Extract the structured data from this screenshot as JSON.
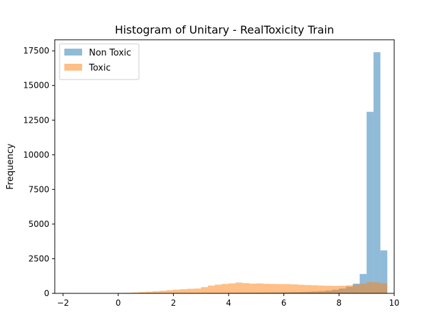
{
  "chart_data": {
    "type": "bar",
    "title": "Histogram of Unitary - RealToxicity Train",
    "xlabel": "",
    "ylabel": "Frequency",
    "xlim": [
      -2.3,
      10.0
    ],
    "ylim": [
      0,
      18300
    ],
    "xticks": [
      -2,
      0,
      2,
      4,
      6,
      8,
      10
    ],
    "yticks": [
      0,
      2500,
      5000,
      7500,
      10000,
      12500,
      15000,
      17500
    ],
    "grid": false,
    "legend_position": "top-left",
    "bin_width": 0.25,
    "series": [
      {
        "name": "Non Toxic",
        "color": "#1f77b4",
        "opacity": 0.5,
        "bins": [
          [
            3.0,
            20
          ],
          [
            3.25,
            25
          ],
          [
            3.5,
            30
          ],
          [
            3.75,
            30
          ],
          [
            4.0,
            35
          ],
          [
            4.25,
            40
          ],
          [
            4.5,
            40
          ],
          [
            4.75,
            45
          ],
          [
            5.0,
            50
          ],
          [
            5.25,
            55
          ],
          [
            5.5,
            60
          ],
          [
            5.75,
            65
          ],
          [
            6.0,
            75
          ],
          [
            6.25,
            85
          ],
          [
            6.5,
            95
          ],
          [
            6.75,
            110
          ],
          [
            7.0,
            130
          ],
          [
            7.25,
            160
          ],
          [
            7.5,
            200
          ],
          [
            7.75,
            260
          ],
          [
            8.0,
            350
          ],
          [
            8.25,
            480
          ],
          [
            8.5,
            700
          ],
          [
            8.75,
            1400
          ],
          [
            9.0,
            13100
          ],
          [
            9.25,
            17400
          ],
          [
            9.5,
            3100
          ]
        ]
      },
      {
        "name": "Toxic",
        "color": "#ff7f0e",
        "opacity": 0.5,
        "bins": [
          [
            0.0,
            30
          ],
          [
            0.25,
            40
          ],
          [
            0.5,
            60
          ],
          [
            0.75,
            90
          ],
          [
            1.0,
            120
          ],
          [
            1.25,
            150
          ],
          [
            1.5,
            190
          ],
          [
            1.75,
            230
          ],
          [
            2.0,
            270
          ],
          [
            2.25,
            300
          ],
          [
            2.5,
            330
          ],
          [
            2.75,
            350
          ],
          [
            3.0,
            450
          ],
          [
            3.25,
            560
          ],
          [
            3.5,
            630
          ],
          [
            3.75,
            680
          ],
          [
            4.0,
            720
          ],
          [
            4.25,
            780
          ],
          [
            4.5,
            740
          ],
          [
            4.75,
            700
          ],
          [
            5.0,
            720
          ],
          [
            5.25,
            690
          ],
          [
            5.5,
            680
          ],
          [
            5.75,
            670
          ],
          [
            6.0,
            670
          ],
          [
            6.25,
            650
          ],
          [
            6.5,
            620
          ],
          [
            6.75,
            600
          ],
          [
            7.0,
            580
          ],
          [
            7.25,
            560
          ],
          [
            7.5,
            550
          ],
          [
            7.75,
            540
          ],
          [
            8.0,
            550
          ],
          [
            8.25,
            580
          ],
          [
            8.5,
            620
          ],
          [
            8.75,
            700
          ],
          [
            9.0,
            820
          ],
          [
            9.25,
            800
          ],
          [
            9.5,
            720
          ]
        ]
      }
    ]
  }
}
